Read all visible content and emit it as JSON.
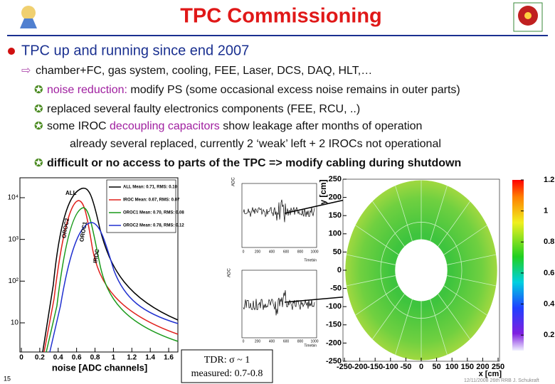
{
  "header": {
    "title": "TPC Commissioning"
  },
  "bullets": {
    "main": "TPC up and running since end 2007",
    "sub": "chamber+FC, gas system, cooling, FEE, Laser, DCS, DAQ, HLT,…",
    "items": [
      {
        "highlight": "noise reduction:",
        "text": " modify PS  (some occasional excess noise remains in outer parts)"
      },
      {
        "text": "replaced several faulty electronics components (FEE, RCU, ..)"
      },
      {
        "before": "some IROC ",
        "highlight": "decoupling capacitors",
        "text": " show leakage after months of operation",
        "continuation": "already several replaced, currently 2 ‘weak’ left + 2 IROCs not operational"
      },
      {
        "text": "difficult or no access to parts of the TPC => modify cabling during shutdown"
      }
    ]
  },
  "noise_plot": {
    "legend": [
      "ALL   Mean: 0.71, RMS: 0.10",
      "IROC   Mean: 0.67, RMS: 0.07",
      "OROC1  Mean: 0.70, RMS: 0.08",
      "OROC2  Mean: 0.78, RMS: 0.12"
    ],
    "colors": [
      "#000000",
      "#e0201c",
      "#1a9a1a",
      "#2030d0"
    ],
    "curve_labels": [
      "ALL",
      "OROC2",
      "IROC",
      "OROC1"
    ],
    "xlabel": "noise [ADC channels]",
    "xlim": [
      0,
      1.7
    ],
    "xticks": [
      0,
      0.2,
      0.4,
      0.6,
      0.8,
      1,
      1.2,
      1.4,
      1.6
    ],
    "ylim": [
      2,
      30000
    ],
    "yticks": [
      {
        "value": 10,
        "label": "10"
      },
      {
        "value": 100,
        "label": "10²"
      },
      {
        "value": 1000,
        "label": "10³"
      },
      {
        "value": 10000,
        "label": "10⁴"
      }
    ]
  },
  "traces": {
    "ylabel": "ADC",
    "xlabel": "Timebin",
    "xticks": [
      0,
      200,
      400,
      600,
      800,
      1000
    ]
  },
  "tdr_box": {
    "line1": "TDR: σ ~ 1",
    "line2": "measured: 0.7-0.8"
  },
  "map": {
    "ylabel": "y [cm]",
    "xlabel": "x [cm]",
    "xlim": [
      -250,
      250
    ],
    "ylim": [
      -250,
      250
    ],
    "xticks": [
      -250,
      -200,
      -150,
      -100,
      -50,
      0,
      50,
      100,
      150,
      200,
      250
    ],
    "yticks": [
      250,
      200,
      150,
      100,
      50,
      0,
      -50,
      -100,
      -150,
      -200,
      -250
    ],
    "zlim": [
      0.1,
      1.2
    ],
    "zticks": [
      1.2,
      1,
      0.8,
      0.6,
      0.4,
      0.2
    ]
  },
  "footer": {
    "page": "15",
    "note": "12/11/2008 26th RRB J. Schukraft"
  }
}
